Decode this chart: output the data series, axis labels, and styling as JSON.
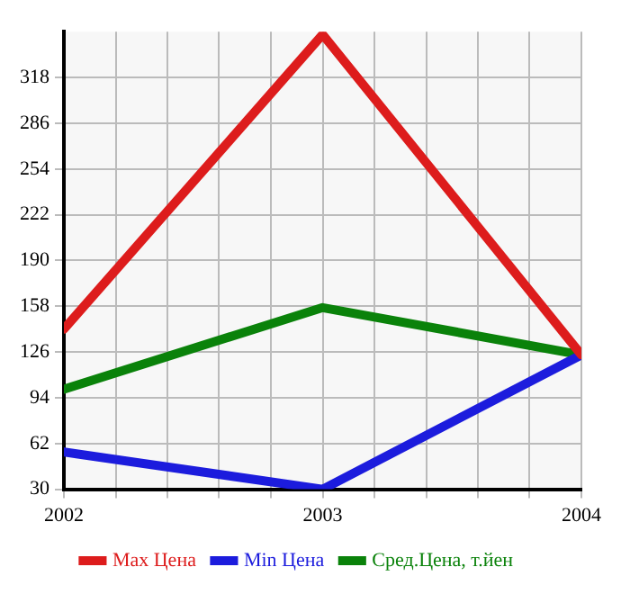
{
  "chart_data": {
    "type": "line",
    "x": [
      2002,
      2003,
      2004
    ],
    "series": [
      {
        "name": "Max Цена",
        "color": "#dd1c1c",
        "values": [
          142,
          348,
          124
        ]
      },
      {
        "name": "Min Цена",
        "color": "#1c1cdd",
        "values": [
          56,
          30,
          124
        ]
      },
      {
        "name": "Сред.Цена, т.йен",
        "color": "#0a820a",
        "values": [
          100,
          157,
          124
        ]
      }
    ],
    "xlim": [
      2002,
      2004
    ],
    "xticks": [
      2002,
      {
        "value": 2002.2,
        "label": null
      },
      {
        "value": 2002.4,
        "label": null
      },
      {
        "value": 2002.6,
        "label": null
      },
      {
        "value": 2002.8,
        "label": null
      },
      2003,
      {
        "value": 2003.2,
        "label": null
      },
      {
        "value": 2003.4,
        "label": null
      },
      {
        "value": 2003.6,
        "label": null
      },
      {
        "value": 2003.8,
        "label": null
      },
      2004
    ],
    "ylim": [
      30,
      350
    ],
    "yticks": [
      30,
      62,
      94,
      126,
      158,
      190,
      222,
      254,
      286,
      318
    ],
    "grid": true,
    "legend": "bottom",
    "marker": "none",
    "line_style": "solid"
  }
}
